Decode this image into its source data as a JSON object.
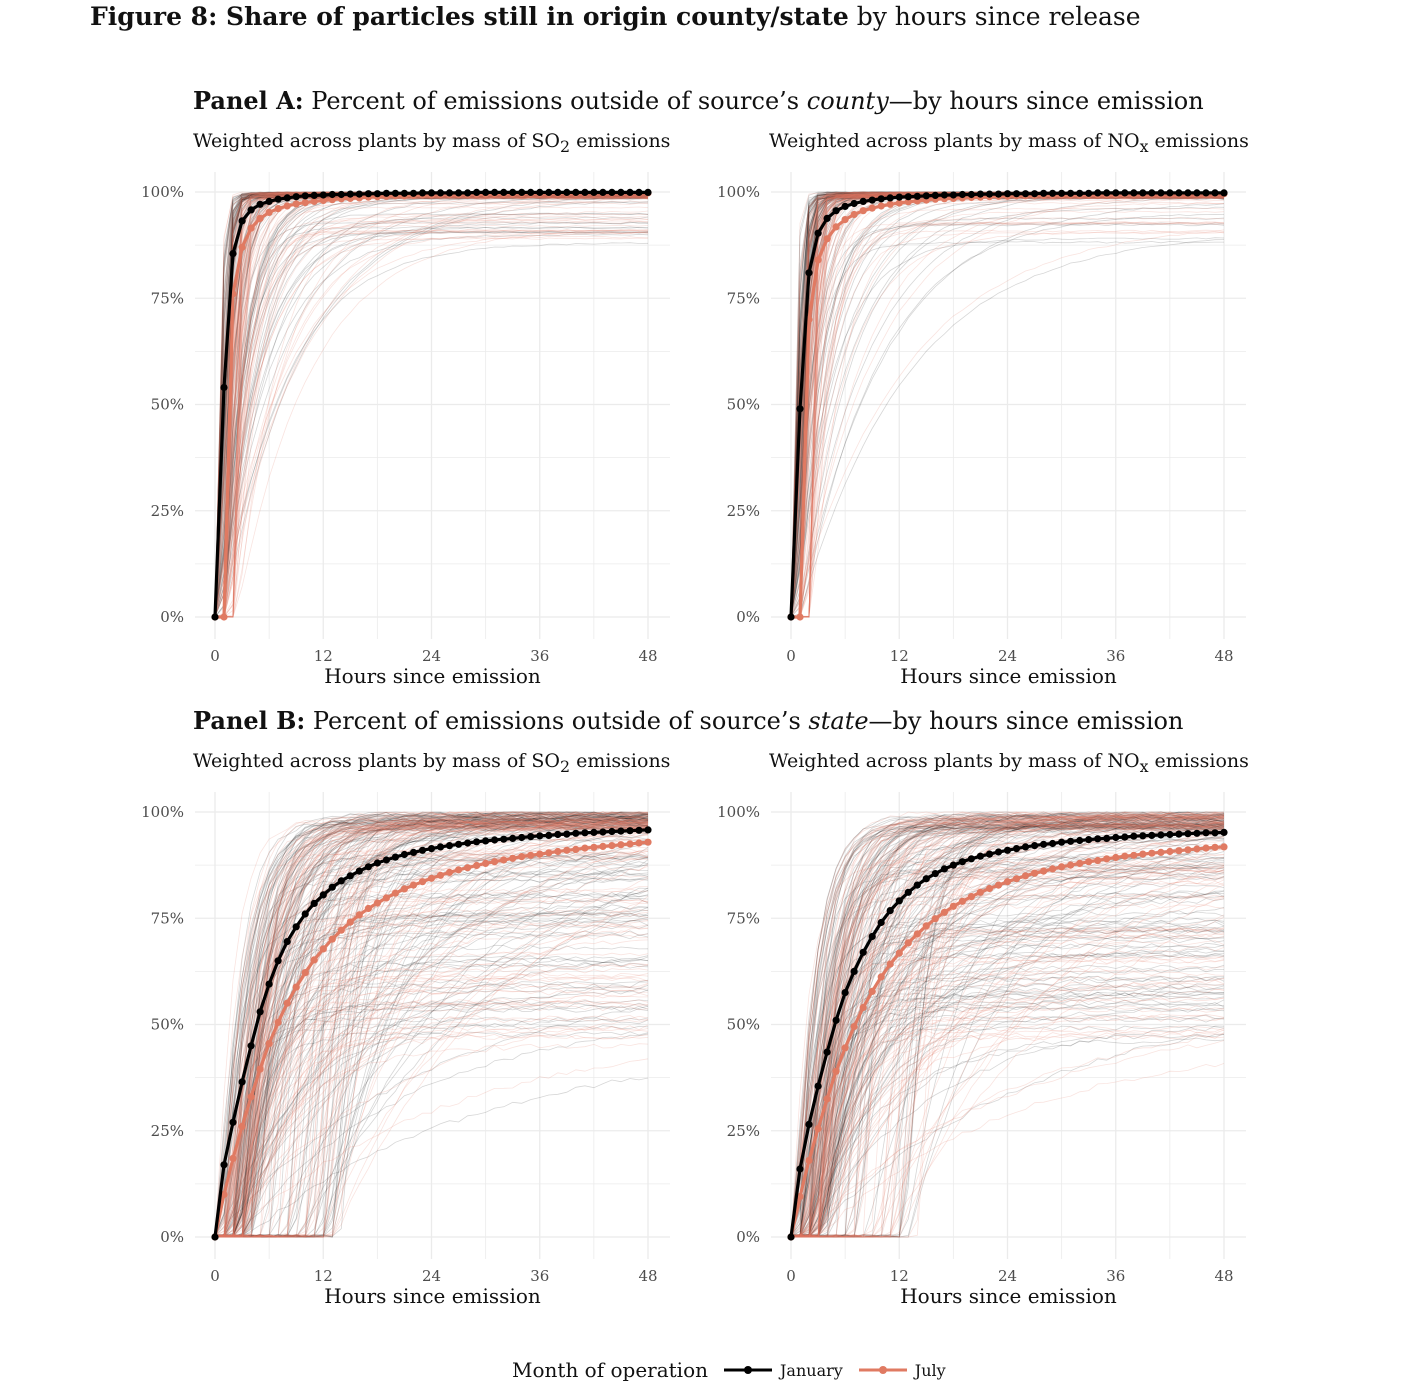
{
  "figure": {
    "title_bold": "Figure 8: Share of particles still in origin county/state",
    "title_rest": " by hours since release"
  },
  "panels": [
    {
      "label_bold": "Panel A:",
      "text_before": " Percent of emissions outside of source’s ",
      "text_italic": "county",
      "text_after": "—by hours since emission"
    },
    {
      "label_bold": "Panel B:",
      "text_before": " Percent of emissions outside of source’s ",
      "text_italic": "state",
      "text_after": "—by hours since emission"
    }
  ],
  "subtitles": {
    "so2": {
      "before": "Weighted across plants by mass of SO",
      "sub": "2",
      "after": " emissions"
    },
    "nox": {
      "before": "Weighted across plants by mass of NO",
      "sub": "x",
      "after": " emissions"
    }
  },
  "legend": {
    "title": "Month of operation",
    "items": [
      {
        "label": "January",
        "color": "#000000"
      },
      {
        "label": "July",
        "color": "#e07a62"
      }
    ]
  },
  "colors": {
    "january": "#000000",
    "july": "#e07a62",
    "grid": "#ebebeb",
    "axis_text": "#4d4d4d"
  },
  "chart_data": [
    {
      "type": "line",
      "panel": "Panel A",
      "subtitle": "Weighted across plants by mass of SO2 emissions",
      "xlabel": "Hours since emission",
      "ylabel": "",
      "xlim": [
        0,
        48
      ],
      "ylim": [
        0,
        100
      ],
      "xticks": [
        0,
        12,
        24,
        36,
        48
      ],
      "yticks": [
        "0%",
        "25%",
        "50%",
        "75%",
        "100%"
      ],
      "grid": true,
      "background_lines": "many faint per-plant lines in both colors",
      "series": [
        {
          "name": "January",
          "x": [
            0,
            1,
            2,
            3,
            4,
            5,
            6,
            7,
            8,
            9,
            10,
            11,
            12,
            13,
            14,
            15,
            16,
            17,
            18,
            19,
            20,
            21,
            22,
            23,
            24,
            25,
            26,
            27,
            28,
            29,
            30,
            31,
            32,
            33,
            34,
            35,
            36,
            37,
            38,
            39,
            40,
            41,
            42,
            43,
            44,
            45,
            46,
            47,
            48
          ],
          "values": [
            0,
            54,
            85.5,
            93.2,
            95.8,
            97.1,
            97.8,
            98.3,
            98.6,
            98.9,
            99.1,
            99.2,
            99.3,
            99.4,
            99.4,
            99.5,
            99.5,
            99.6,
            99.6,
            99.7,
            99.7,
            99.7,
            99.7,
            99.8,
            99.8,
            99.8,
            99.8,
            99.8,
            99.8,
            99.9,
            99.9,
            99.9,
            99.9,
            99.9,
            99.9,
            99.9,
            99.9,
            99.9,
            99.9,
            99.9,
            99.9,
            99.9,
            99.9,
            99.9,
            99.9,
            99.9,
            99.9,
            99.9,
            99.9
          ]
        },
        {
          "name": "July",
          "x": [
            0,
            1,
            2,
            3,
            4,
            5,
            6,
            7,
            8,
            9,
            10,
            11,
            12,
            13,
            14,
            15,
            16,
            17,
            18,
            19,
            20,
            21,
            22,
            23,
            24,
            25,
            26,
            27,
            28,
            29,
            30,
            31,
            32,
            33,
            34,
            35,
            36,
            37,
            38,
            39,
            40,
            41,
            42,
            43,
            44,
            45,
            46,
            47,
            48
          ],
          "values": [
            0,
            0,
            76,
            87,
            91.5,
            93.8,
            95.2,
            96.1,
            96.7,
            97.2,
            97.5,
            97.8,
            98,
            98.2,
            98.4,
            98.5,
            98.6,
            98.8,
            98.9,
            99,
            99.1,
            99.1,
            99.2,
            99.3,
            99.3,
            99.4,
            99.4,
            99.4,
            99.5,
            99.5,
            99.5,
            99.6,
            99.6,
            99.6,
            99.6,
            99.7,
            99.7,
            99.7,
            99.7,
            99.7,
            99.7,
            99.8,
            99.8,
            99.8,
            99.8,
            99.8,
            99.8,
            99.8,
            99.8
          ]
        }
      ]
    },
    {
      "type": "line",
      "panel": "Panel A",
      "subtitle": "Weighted across plants by mass of NOx emissions",
      "xlabel": "Hours since emission",
      "ylabel": "",
      "xlim": [
        0,
        48
      ],
      "ylim": [
        0,
        100
      ],
      "xticks": [
        0,
        12,
        24,
        36,
        48
      ],
      "yticks": [
        "0%",
        "25%",
        "50%",
        "75%",
        "100%"
      ],
      "grid": true,
      "background_lines": "many faint per-plant lines in both colors",
      "series": [
        {
          "name": "January",
          "x": [
            0,
            1,
            2,
            3,
            4,
            5,
            6,
            7,
            8,
            9,
            10,
            11,
            12,
            13,
            14,
            15,
            16,
            17,
            18,
            19,
            20,
            21,
            22,
            23,
            24,
            25,
            26,
            27,
            28,
            29,
            30,
            31,
            32,
            33,
            34,
            35,
            36,
            37,
            38,
            39,
            40,
            41,
            42,
            43,
            44,
            45,
            46,
            47,
            48
          ],
          "values": [
            0,
            49,
            81,
            90.3,
            93.8,
            95.6,
            96.6,
            97.3,
            97.8,
            98.1,
            98.4,
            98.6,
            98.8,
            98.9,
            99,
            99.1,
            99.2,
            99.3,
            99.3,
            99.4,
            99.4,
            99.5,
            99.5,
            99.5,
            99.6,
            99.6,
            99.6,
            99.6,
            99.7,
            99.7,
            99.7,
            99.7,
            99.7,
            99.7,
            99.8,
            99.8,
            99.8,
            99.8,
            99.8,
            99.8,
            99.8,
            99.8,
            99.8,
            99.8,
            99.8,
            99.8,
            99.8,
            99.8,
            99.8
          ]
        },
        {
          "name": "July",
          "x": [
            0,
            1,
            2,
            3,
            4,
            5,
            6,
            7,
            8,
            9,
            10,
            11,
            12,
            13,
            14,
            15,
            16,
            17,
            18,
            19,
            20,
            21,
            22,
            23,
            24,
            25,
            26,
            27,
            28,
            29,
            30,
            31,
            32,
            33,
            34,
            35,
            36,
            37,
            38,
            39,
            40,
            41,
            42,
            43,
            44,
            45,
            46,
            47,
            48
          ],
          "values": [
            0,
            0,
            70,
            84,
            89,
            91.8,
            93.5,
            94.7,
            95.6,
            96.2,
            96.7,
            97.1,
            97.4,
            97.7,
            97.9,
            98.1,
            98.3,
            98.4,
            98.5,
            98.6,
            98.7,
            98.8,
            98.9,
            99,
            99,
            99.1,
            99.1,
            99.2,
            99.2,
            99.2,
            99.3,
            99.3,
            99.3,
            99.4,
            99.4,
            99.4,
            99.4,
            99.5,
            99.5,
            99.5,
            99.5,
            99.5,
            99.6,
            99.6,
            99.6,
            99.6,
            99.6,
            99.6,
            99.6
          ]
        }
      ]
    },
    {
      "type": "line",
      "panel": "Panel B",
      "subtitle": "Weighted across plants by mass of SO2 emissions",
      "xlabel": "Hours since emission",
      "ylabel": "",
      "xlim": [
        0,
        48
      ],
      "ylim": [
        0,
        100
      ],
      "xticks": [
        0,
        12,
        24,
        36,
        48
      ],
      "yticks": [
        "0%",
        "25%",
        "50%",
        "75%",
        "100%"
      ],
      "grid": true,
      "background_lines": "many faint per-plant lines in both colors",
      "series": [
        {
          "name": "January",
          "x": [
            0,
            1,
            2,
            3,
            4,
            5,
            6,
            7,
            8,
            9,
            10,
            11,
            12,
            13,
            14,
            15,
            16,
            17,
            18,
            19,
            20,
            21,
            22,
            23,
            24,
            25,
            26,
            27,
            28,
            29,
            30,
            31,
            32,
            33,
            34,
            35,
            36,
            37,
            38,
            39,
            40,
            41,
            42,
            43,
            44,
            45,
            46,
            47,
            48
          ],
          "values": [
            0,
            17,
            27,
            36.5,
            45,
            53,
            59.5,
            65,
            69.5,
            73,
            76,
            78.5,
            80.5,
            82.3,
            83.8,
            85,
            86.1,
            87.1,
            88,
            88.7,
            89.4,
            90,
            90.5,
            91,
            91.4,
            91.8,
            92.1,
            92.4,
            92.7,
            93,
            93.2,
            93.4,
            93.6,
            93.8,
            94,
            94.2,
            94.4,
            94.5,
            94.7,
            94.8,
            95,
            95.1,
            95.2,
            95.3,
            95.4,
            95.5,
            95.6,
            95.7,
            95.8
          ]
        },
        {
          "name": "July",
          "x": [
            0,
            1,
            2,
            3,
            4,
            5,
            6,
            7,
            8,
            9,
            10,
            11,
            12,
            13,
            14,
            15,
            16,
            17,
            18,
            19,
            20,
            21,
            22,
            23,
            24,
            25,
            26,
            27,
            28,
            29,
            30,
            31,
            32,
            33,
            34,
            35,
            36,
            37,
            38,
            39,
            40,
            41,
            42,
            43,
            44,
            45,
            46,
            47,
            48
          ],
          "values": [
            0,
            10,
            18.5,
            26,
            33,
            39.5,
            45.5,
            50.5,
            55,
            58.8,
            62.2,
            65.2,
            67.8,
            70.1,
            72.2,
            74.1,
            75.8,
            77.3,
            78.6,
            79.8,
            80.9,
            81.9,
            82.8,
            83.6,
            84.4,
            85.1,
            85.8,
            86.4,
            86.9,
            87.4,
            87.9,
            88.3,
            88.7,
            89.1,
            89.5,
            89.8,
            90.1,
            90.4,
            90.7,
            91,
            91.2,
            91.5,
            91.7,
            91.9,
            92.1,
            92.3,
            92.5,
            92.7,
            92.9
          ]
        }
      ]
    },
    {
      "type": "line",
      "panel": "Panel B",
      "subtitle": "Weighted across plants by mass of NOx emissions",
      "xlabel": "Hours since emission",
      "ylabel": "",
      "xlim": [
        0,
        48
      ],
      "ylim": [
        0,
        100
      ],
      "xticks": [
        0,
        12,
        24,
        36,
        48
      ],
      "yticks": [
        "0%",
        "25%",
        "50%",
        "75%",
        "100%"
      ],
      "grid": true,
      "background_lines": "many faint per-plant lines in both colors",
      "series": [
        {
          "name": "January",
          "x": [
            0,
            1,
            2,
            3,
            4,
            5,
            6,
            7,
            8,
            9,
            10,
            11,
            12,
            13,
            14,
            15,
            16,
            17,
            18,
            19,
            20,
            21,
            22,
            23,
            24,
            25,
            26,
            27,
            28,
            29,
            30,
            31,
            32,
            33,
            34,
            35,
            36,
            37,
            38,
            39,
            40,
            41,
            42,
            43,
            44,
            45,
            46,
            47,
            48
          ],
          "values": [
            0,
            16,
            26.5,
            35.5,
            43.5,
            51,
            57.5,
            62.5,
            67,
            70.7,
            74,
            76.8,
            79.1,
            81.1,
            82.8,
            84.3,
            85.5,
            86.6,
            87.5,
            88.3,
            89,
            89.6,
            90.1,
            90.6,
            91,
            91.4,
            91.8,
            92.1,
            92.4,
            92.6,
            92.9,
            93.1,
            93.3,
            93.5,
            93.7,
            93.8,
            94,
            94.1,
            94.3,
            94.4,
            94.5,
            94.6,
            94.7,
            94.8,
            94.9,
            95,
            95.1,
            95.1,
            95.2
          ]
        },
        {
          "name": "July",
          "x": [
            0,
            1,
            2,
            3,
            4,
            5,
            6,
            7,
            8,
            9,
            10,
            11,
            12,
            13,
            14,
            15,
            16,
            17,
            18,
            19,
            20,
            21,
            22,
            23,
            24,
            25,
            26,
            27,
            28,
            29,
            30,
            31,
            32,
            33,
            34,
            35,
            36,
            37,
            38,
            39,
            40,
            41,
            42,
            43,
            44,
            45,
            46,
            47,
            48
          ],
          "values": [
            0,
            9.5,
            18,
            25.5,
            32.5,
            39,
            44.5,
            49.5,
            54,
            57.8,
            61.2,
            64.2,
            66.8,
            69.2,
            71.3,
            73.2,
            74.9,
            76.4,
            77.8,
            79,
            80.1,
            81.1,
            82,
            82.8,
            83.6,
            84.3,
            85,
            85.6,
            86.1,
            86.6,
            87.1,
            87.5,
            87.9,
            88.3,
            88.6,
            89,
            89.3,
            89.6,
            89.8,
            90.1,
            90.3,
            90.5,
            90.7,
            90.9,
            91.1,
            91.3,
            91.5,
            91.7,
            91.8
          ]
        }
      ]
    }
  ]
}
